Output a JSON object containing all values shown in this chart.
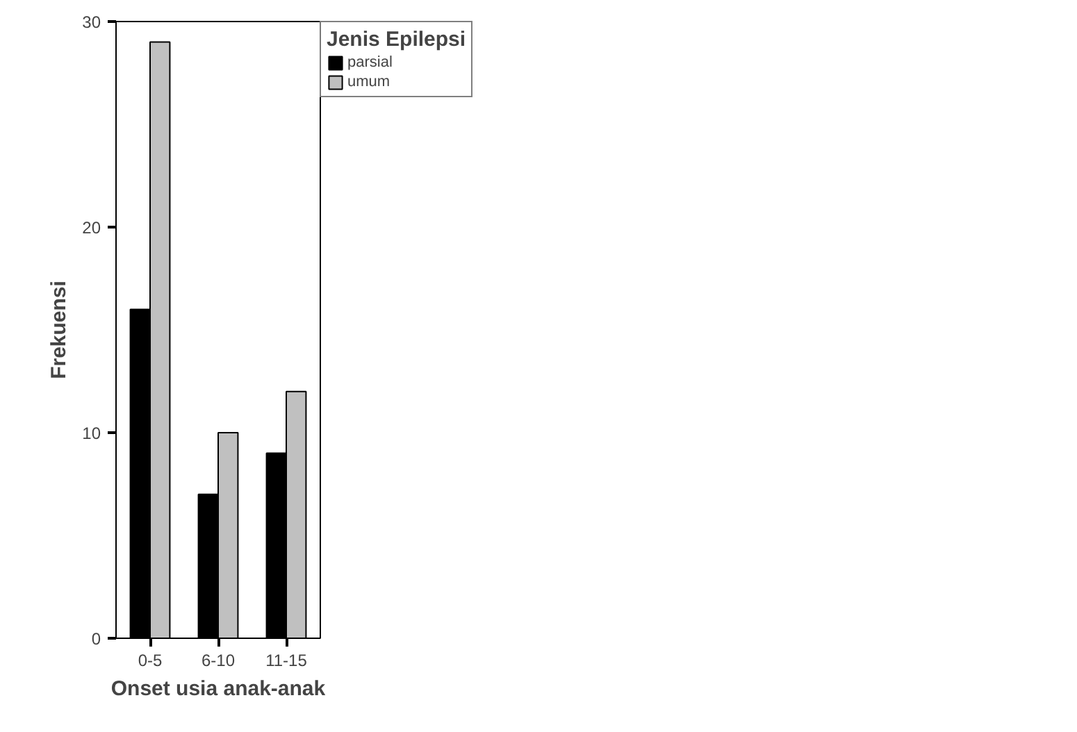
{
  "chart_data": {
    "type": "bar",
    "xlabel": "Onset usia anak-anak",
    "ylabel": "Frekuensi",
    "legend_title": "Jenis Epilepsi",
    "legend": "right",
    "categories": [
      "0-5",
      "6-10",
      "11-15"
    ],
    "series": [
      {
        "name": "parsial",
        "color": "#000000",
        "values": [
          16,
          7,
          9
        ]
      },
      {
        "name": "umum",
        "color": "#c0c0c0",
        "values": [
          29,
          10,
          12
        ]
      }
    ],
    "ylim": [
      0,
      30
    ],
    "yticks": [
      0,
      10,
      20,
      30
    ]
  }
}
